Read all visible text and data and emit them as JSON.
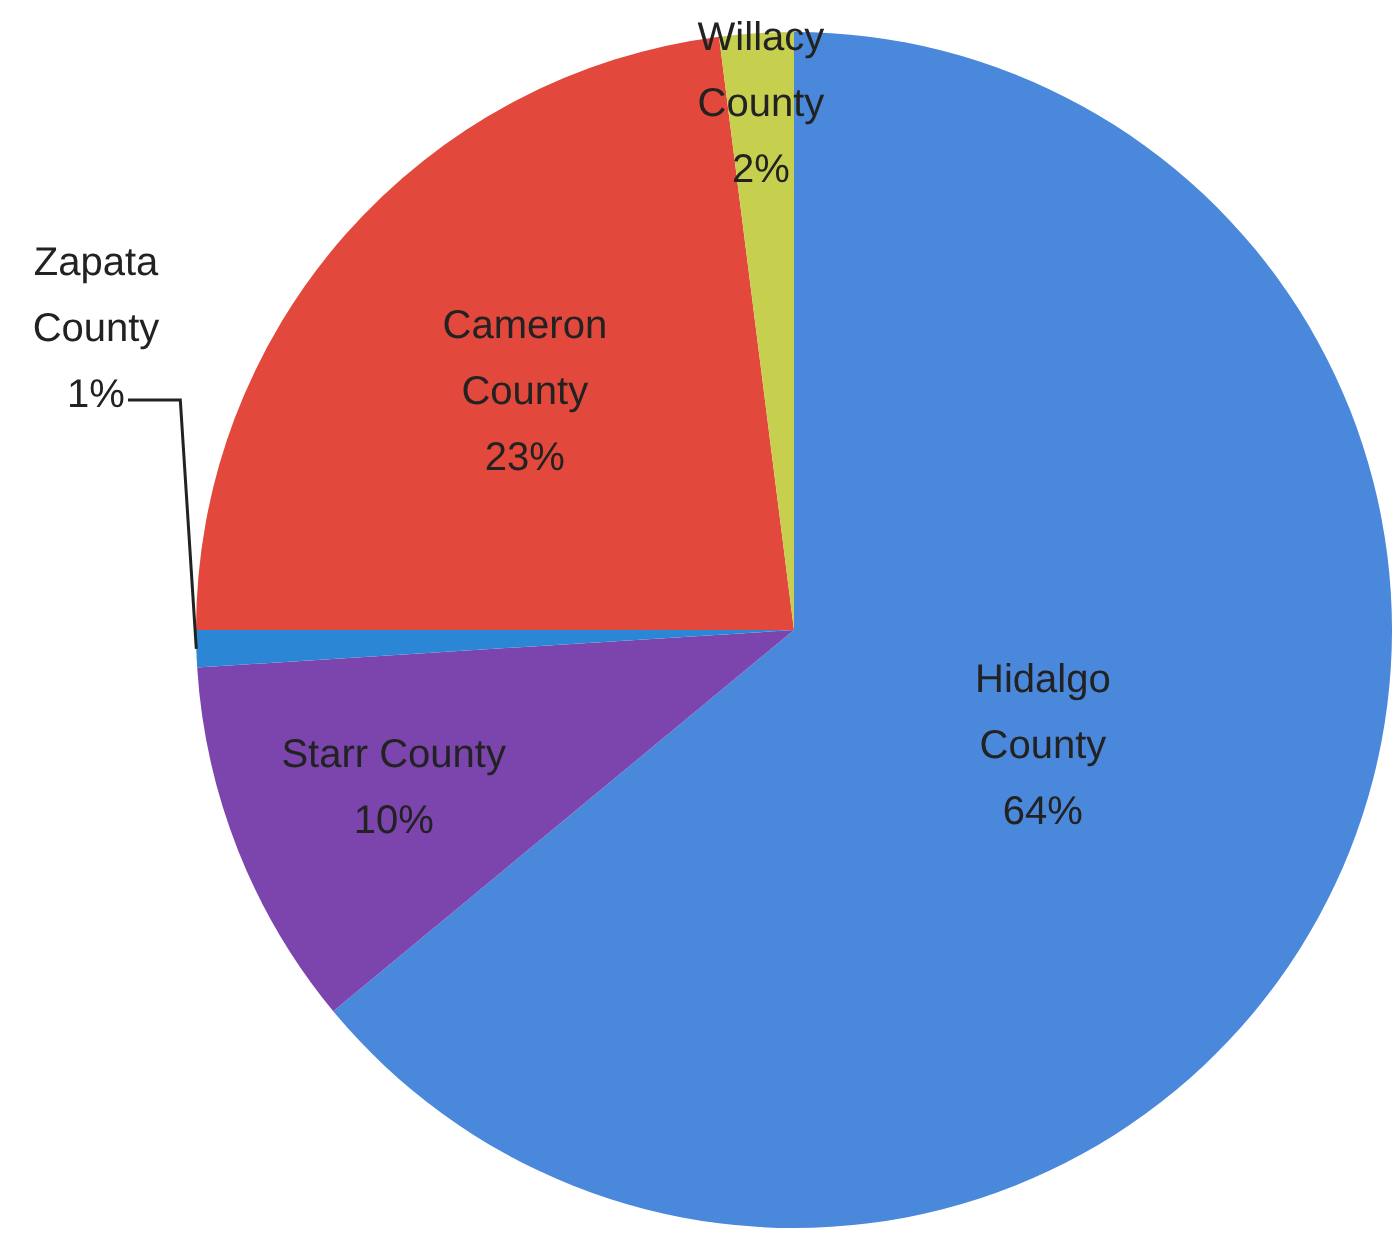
{
  "chart_data": {
    "type": "pie",
    "categories": [
      "Hidalgo County",
      "Starr County",
      "Zapata County",
      "Cameron County",
      "Willacy County"
    ],
    "values": [
      64,
      10,
      1,
      23,
      2
    ],
    "colors": [
      "#4a88dc",
      "#7c45ad",
      "#2c86d6",
      "#e2483b",
      "#c6cf4e"
    ],
    "value_labels": [
      "64%",
      "10%",
      "1%",
      "23%",
      "2%"
    ],
    "legend": false
  }
}
